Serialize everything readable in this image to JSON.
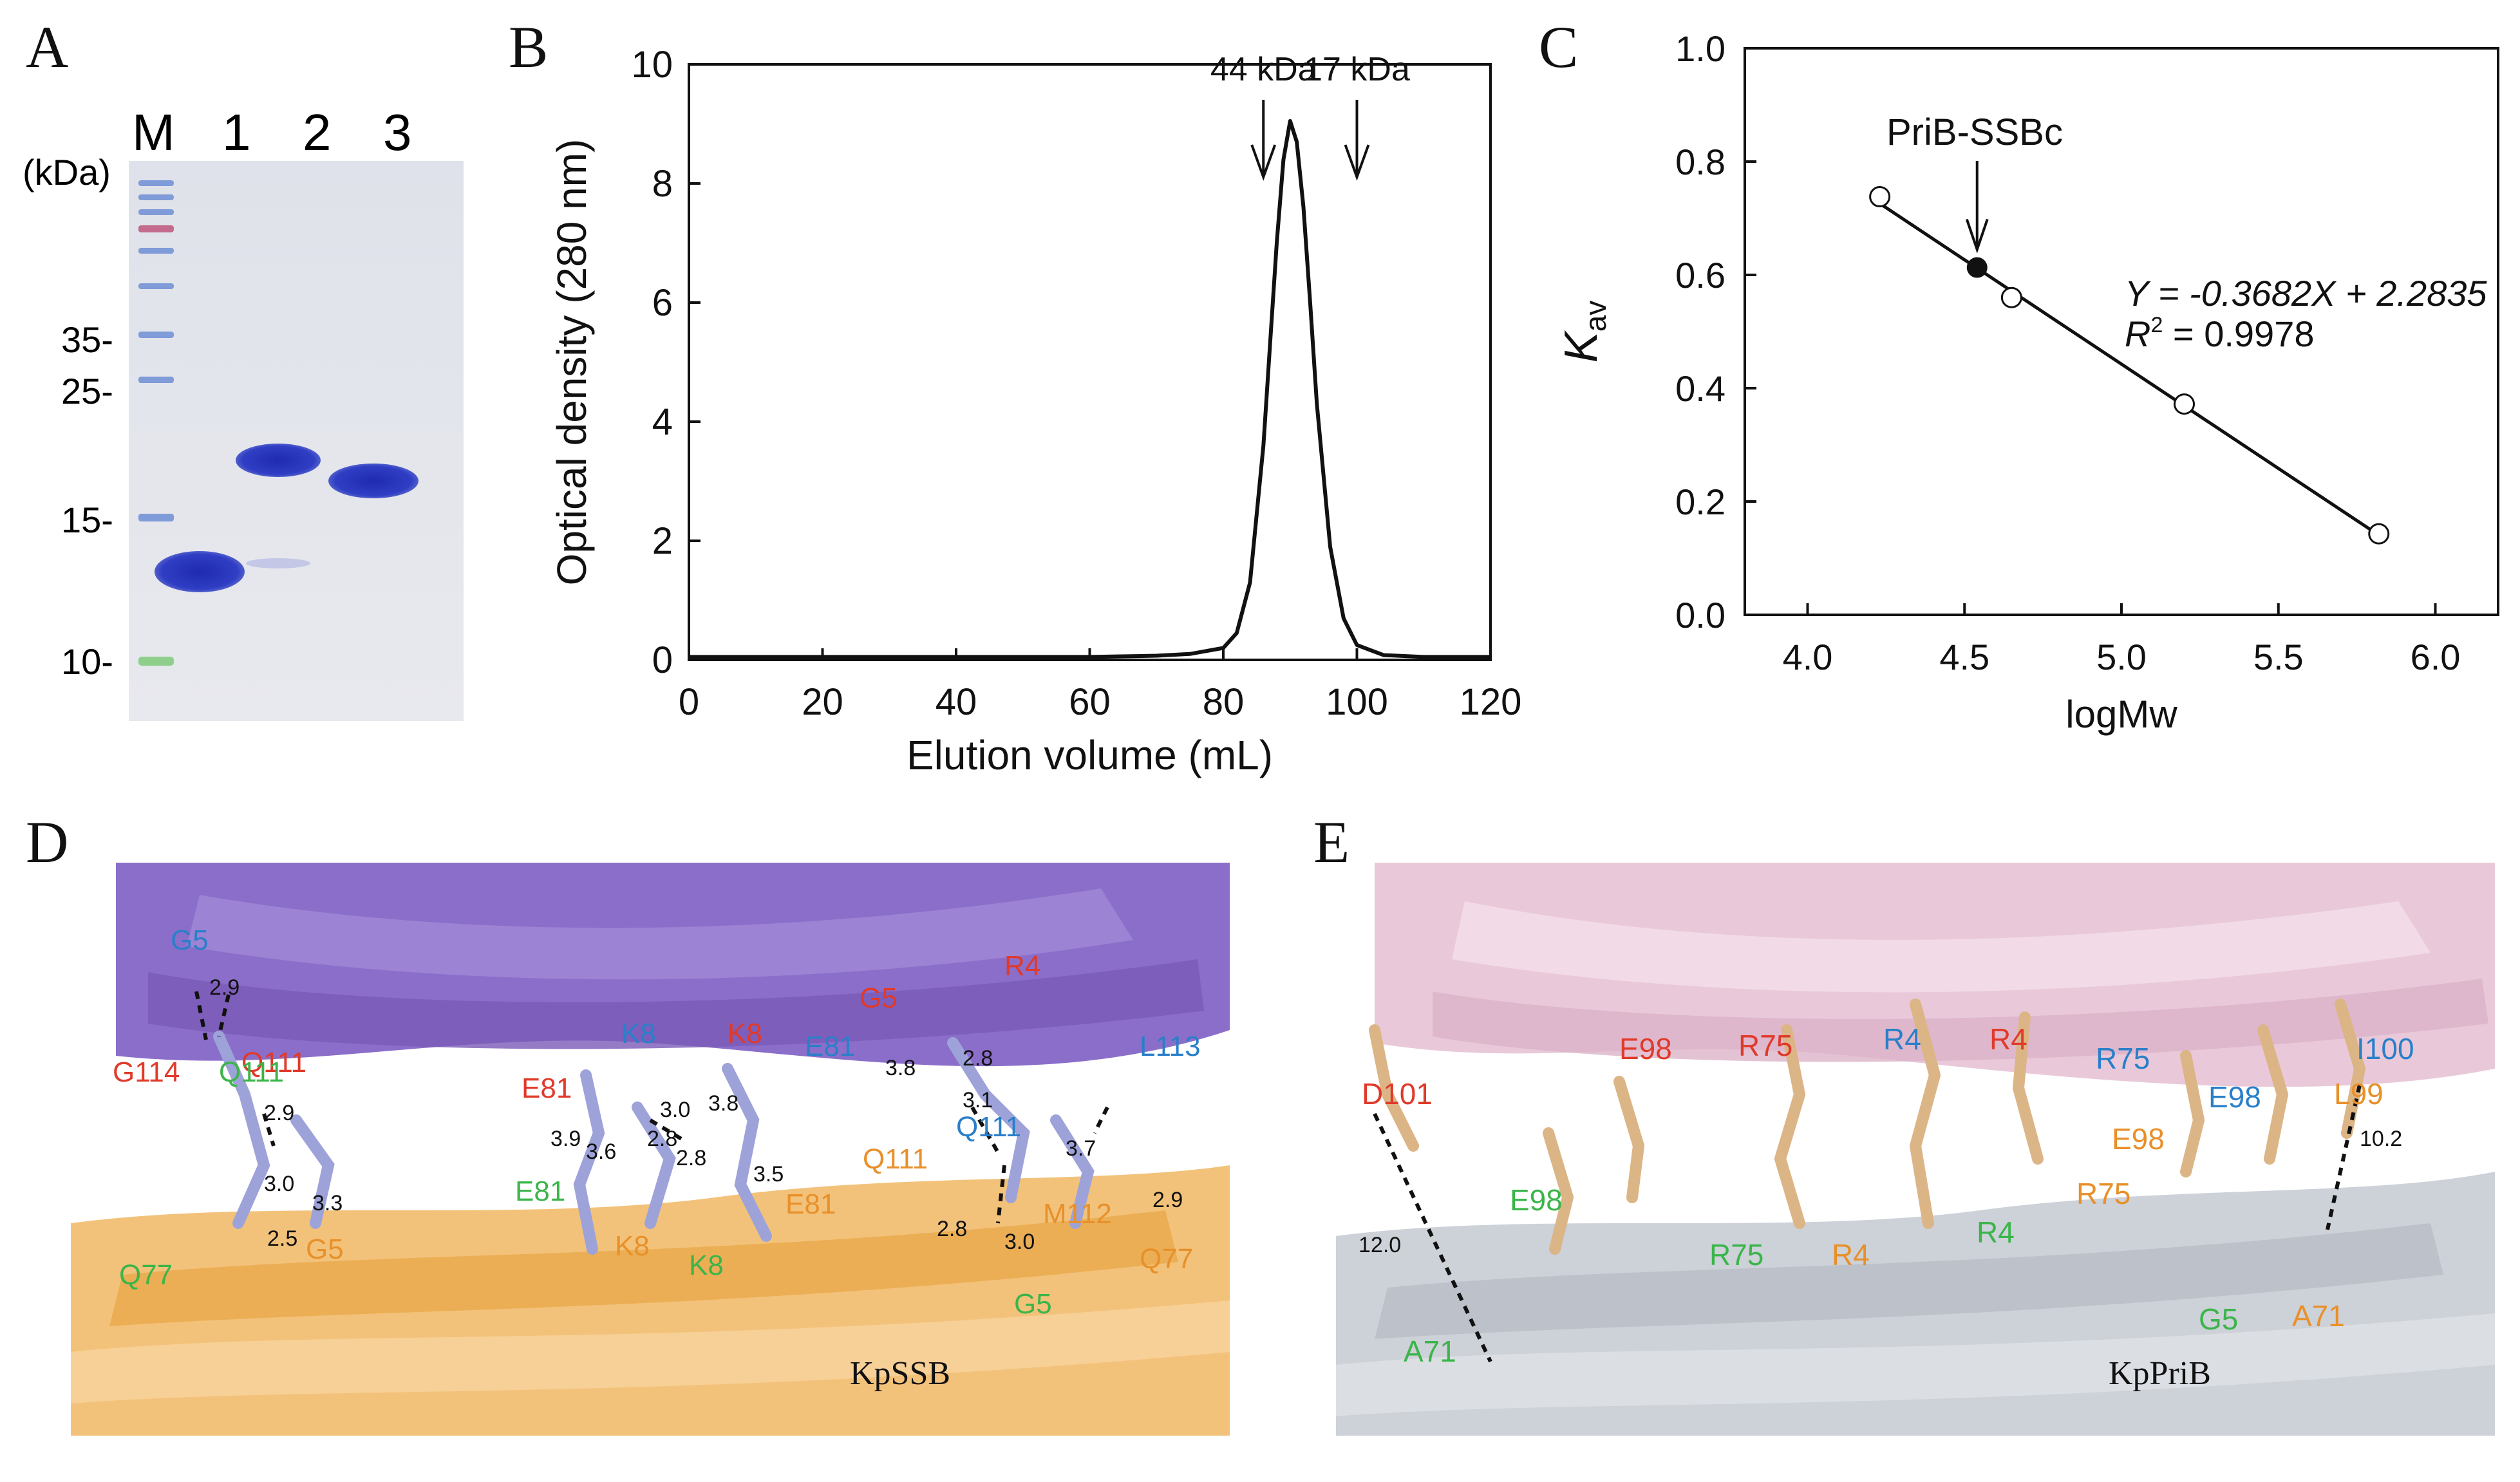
{
  "panels": {
    "A": {
      "letter": "A",
      "lane_labels": [
        "M",
        "1",
        "2",
        "3"
      ],
      "unit": "(kDa)",
      "markers": [
        "35-",
        "25-",
        "15-",
        "10-"
      ]
    },
    "B": {
      "letter": "B",
      "arrow_labels": [
        "44 kDa",
        "17 kDa"
      ]
    },
    "C": {
      "letter": "C",
      "point_label": "PriB-SSBc",
      "equation": "Y = -0.3682X + 2.2835",
      "r2_prefix": "R",
      "r2_sup": "2",
      "r2_value": " = 0.9978"
    },
    "D": {
      "letter": "D",
      "protein": "KpSSB",
      "residues": [
        {
          "t": "G5",
          "c": "#2a7fc9"
        },
        {
          "t": "Q111",
          "c": "#e03a2a"
        },
        {
          "t": "G114",
          "c": "#e03a2a"
        },
        {
          "t": "Q111",
          "c": "#3bb54a"
        },
        {
          "t": "Q77",
          "c": "#3bb54a"
        },
        {
          "t": "G5",
          "c": "#e8902a"
        },
        {
          "t": "E81",
          "c": "#e03a2a"
        },
        {
          "t": "K8",
          "c": "#2a7fc9"
        },
        {
          "t": "K8",
          "c": "#e03a2a"
        },
        {
          "t": "E81",
          "c": "#2a7fc9"
        },
        {
          "t": "E81",
          "c": "#3bb54a"
        },
        {
          "t": "K8",
          "c": "#e8902a"
        },
        {
          "t": "K8",
          "c": "#3bb54a"
        },
        {
          "t": "E81",
          "c": "#e8902a"
        },
        {
          "t": "G5",
          "c": "#e03a2a"
        },
        {
          "t": "R4",
          "c": "#e03a2a"
        },
        {
          "t": "L113",
          "c": "#2a7fc9"
        },
        {
          "t": "Q111",
          "c": "#2a7fc9"
        },
        {
          "t": "Q111",
          "c": "#e8902a"
        },
        {
          "t": "M112",
          "c": "#e8902a"
        },
        {
          "t": "Q77",
          "c": "#e8902a"
        },
        {
          "t": "G5",
          "c": "#3bb54a"
        }
      ],
      "distances": [
        "2.9",
        "3.0",
        "2.9",
        "2.5",
        "3.3",
        "3.9",
        "3.6",
        "3.0",
        "2.8",
        "3.8",
        "2.8",
        "3.5",
        "3.8",
        "2.8",
        "3.1",
        "3.7",
        "2.9",
        "2.8",
        "3.0"
      ]
    },
    "E": {
      "letter": "E",
      "protein": "KpPriB",
      "residues": [
        {
          "t": "D101",
          "c": "#e03a2a"
        },
        {
          "t": "E98",
          "c": "#e03a2a"
        },
        {
          "t": "R75",
          "c": "#e03a2a"
        },
        {
          "t": "R4",
          "c": "#2a7fc9"
        },
        {
          "t": "R4",
          "c": "#e03a2a"
        },
        {
          "t": "R75",
          "c": "#2a7fc9"
        },
        {
          "t": "E98",
          "c": "#3bb54a"
        },
        {
          "t": "R75",
          "c": "#3bb54a"
        },
        {
          "t": "R4",
          "c": "#e8902a"
        },
        {
          "t": "R4",
          "c": "#3bb54a"
        },
        {
          "t": "R75",
          "c": "#e8902a"
        },
        {
          "t": "E98",
          "c": "#e8902a"
        },
        {
          "t": "E98",
          "c": "#2a7fc9"
        },
        {
          "t": "L99",
          "c": "#e8902a"
        },
        {
          "t": "I100",
          "c": "#2a7fc9"
        },
        {
          "t": "A71",
          "c": "#3bb54a"
        },
        {
          "t": "G5",
          "c": "#3bb54a"
        },
        {
          "t": "A71",
          "c": "#e8902a"
        }
      ],
      "distances": [
        "12.0",
        "10.2"
      ]
    }
  },
  "chart_data": [
    {
      "type": "line",
      "xlabel": "Elution volume (mL)",
      "ylabel": "Optical density (280 nm)",
      "xlim": [
        0,
        120
      ],
      "ylim": [
        0,
        10
      ],
      "xticks": [
        0,
        20,
        40,
        60,
        80,
        100,
        120
      ],
      "yticks": [
        0,
        2,
        4,
        6,
        8,
        10
      ],
      "series": [
        {
          "x": [
            0,
            20,
            40,
            60,
            70,
            75,
            80,
            82,
            84,
            86,
            87,
            88,
            89,
            90,
            91,
            92,
            93,
            94,
            96,
            98,
            100,
            104,
            110,
            120
          ],
          "y": [
            0.05,
            0.05,
            0.05,
            0.05,
            0.07,
            0.1,
            0.2,
            0.45,
            1.3,
            3.6,
            5.3,
            7.0,
            8.4,
            9.05,
            8.7,
            7.6,
            6.0,
            4.3,
            1.9,
            0.7,
            0.25,
            0.08,
            0.05,
            0.05
          ]
        }
      ],
      "annotations": [
        {
          "label": "44 kDa",
          "x": 86
        },
        {
          "label": "17 kDa",
          "x": 100
        }
      ]
    },
    {
      "type": "scatter",
      "xlabel": "logMw",
      "ylabel_main": "K",
      "ylabel_sub": "av",
      "xlim": [
        3.8,
        6.2
      ],
      "ylim": [
        0,
        1.0
      ],
      "xticks": [
        "4.0",
        "4.5",
        "5.0",
        "5.5",
        "6.0"
      ],
      "yticks": [
        "0.0",
        "0.2",
        "0.4",
        "0.6",
        "0.8",
        "1.0"
      ],
      "standards": [
        {
          "x": 4.23,
          "y": 0.738
        },
        {
          "x": 4.65,
          "y": 0.56
        },
        {
          "x": 5.2,
          "y": 0.372
        },
        {
          "x": 5.82,
          "y": 0.143
        }
      ],
      "sample": {
        "x": 4.54,
        "y": 0.613
      },
      "fit": {
        "slope": -0.3682,
        "intercept": 2.2835,
        "x_range": [
          4.23,
          5.82
        ]
      }
    }
  ]
}
